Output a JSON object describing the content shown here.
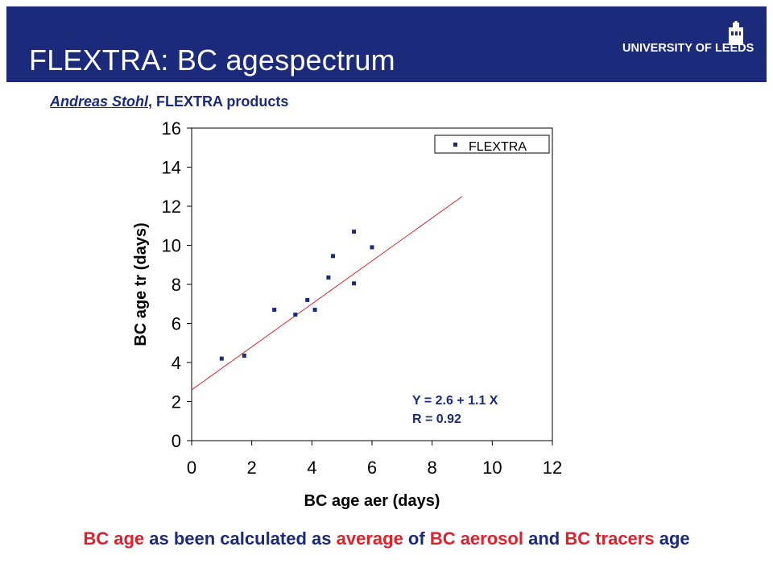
{
  "slide": {
    "title": "FLEXTRA: BC agespectrum",
    "logo_text": "UNIVERSITY OF LEEDS",
    "subtitle_author": "Andreas Stohl",
    "subtitle_rest": ", FLEXTRA products",
    "footer": [
      {
        "text": "BC age",
        "color": "red"
      },
      {
        "text": " as been calculated as ",
        "color": "blue"
      },
      {
        "text": "average",
        "color": "red"
      },
      {
        "text": " of ",
        "color": "blue"
      },
      {
        "text": "BC aerosol",
        "color": "red"
      },
      {
        "text": " and ",
        "color": "blue"
      },
      {
        "text": "BC tracers",
        "color": "red"
      },
      {
        "text": " age",
        "color": "blue"
      }
    ]
  },
  "colors": {
    "brand": "#1b2a7b",
    "accent_red": "#e0202a",
    "marker": "#1b2a7b",
    "fit_line": "#e0202a"
  },
  "chart_data": {
    "type": "scatter",
    "title": "",
    "xlabel": "BC age aer (days)",
    "ylabel": "BC age tr (days)",
    "xlim": [
      0,
      12
    ],
    "ylim": [
      0,
      16
    ],
    "x_ticks": [
      0,
      2,
      4,
      6,
      8,
      10,
      12
    ],
    "y_ticks": [
      0,
      2,
      4,
      6,
      8,
      10,
      12,
      14,
      16
    ],
    "grid": false,
    "legend": {
      "position": "top-right"
    },
    "series": [
      {
        "name": "FLEXTRA",
        "points": [
          {
            "x": 1.0,
            "y": 4.2
          },
          {
            "x": 1.75,
            "y": 4.35
          },
          {
            "x": 2.75,
            "y": 6.7
          },
          {
            "x": 3.45,
            "y": 6.45
          },
          {
            "x": 3.85,
            "y": 7.2
          },
          {
            "x": 4.1,
            "y": 6.7
          },
          {
            "x": 4.55,
            "y": 8.35
          },
          {
            "x": 4.7,
            "y": 9.45
          },
          {
            "x": 5.4,
            "y": 10.7
          },
          {
            "x": 5.4,
            "y": 8.05
          },
          {
            "x": 6.0,
            "y": 9.9
          }
        ]
      }
    ],
    "fit": {
      "x_range": [
        0,
        9
      ],
      "intercept": 2.6,
      "slope": 1.1
    },
    "annotations": [
      "Y = 2.6 + 1.1 X",
      "R = 0.92"
    ]
  }
}
